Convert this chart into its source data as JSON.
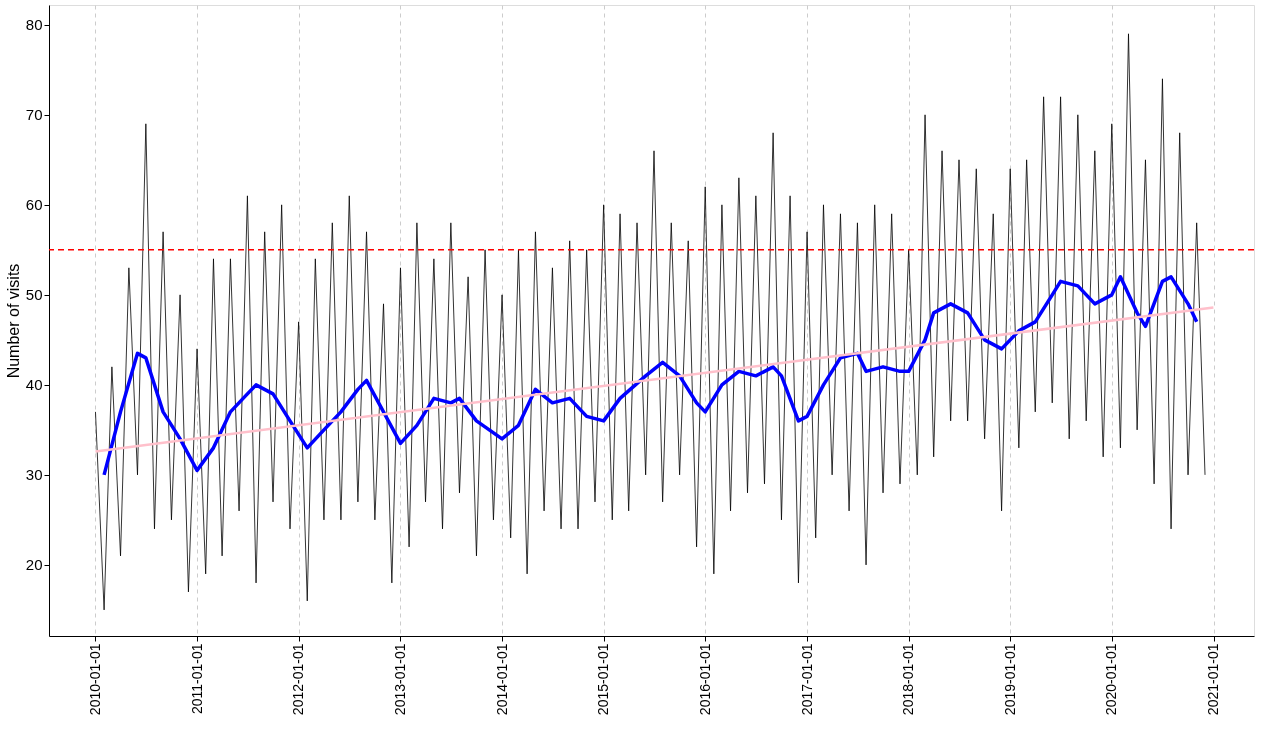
{
  "chart_data": {
    "type": "line",
    "ylabel": "Number of visits",
    "xlim": [
      "2009-07-18",
      "2021-05-26"
    ],
    "ylim": [
      12.1,
      82.2
    ],
    "yticks": [
      20,
      30,
      40,
      50,
      60,
      70,
      80
    ],
    "xticks": [
      "2010-01-01",
      "2011-01-01",
      "2012-01-01",
      "2013-01-01",
      "2014-01-01",
      "2015-01-01",
      "2016-01-01",
      "2017-01-01",
      "2018-01-01",
      "2019-01-01",
      "2020-01-01",
      "2021-01-01"
    ],
    "grid": "x",
    "ref_lines": [
      {
        "axis": "y",
        "value": 55,
        "color": "#ff0000",
        "line_style": "dashed"
      }
    ],
    "series": [
      {
        "color": "#000000",
        "x": [
          "2010-01",
          "2010-02",
          "2010-03",
          "2010-04",
          "2010-05",
          "2010-06",
          "2010-07",
          "2010-08",
          "2010-09",
          "2010-10",
          "2010-11",
          "2010-12",
          "2011-01",
          "2011-02",
          "2011-03",
          "2011-04",
          "2011-05",
          "2011-06",
          "2011-07",
          "2011-08",
          "2011-09",
          "2011-10",
          "2011-11",
          "2011-12",
          "2012-01",
          "2012-02",
          "2012-03",
          "2012-04",
          "2012-05",
          "2012-06",
          "2012-07",
          "2012-08",
          "2012-09",
          "2012-10",
          "2012-11",
          "2012-12",
          "2013-01",
          "2013-02",
          "2013-03",
          "2013-04",
          "2013-05",
          "2013-06",
          "2013-07",
          "2013-08",
          "2013-09",
          "2013-10",
          "2013-11",
          "2013-12",
          "2014-01",
          "2014-02",
          "2014-03",
          "2014-04",
          "2014-05",
          "2014-06",
          "2014-07",
          "2014-08",
          "2014-09",
          "2014-10",
          "2014-11",
          "2014-12",
          "2015-01",
          "2015-02",
          "2015-03",
          "2015-04",
          "2015-05",
          "2015-06",
          "2015-07",
          "2015-08",
          "2015-09",
          "2015-10",
          "2015-11",
          "2015-12",
          "2016-01",
          "2016-02",
          "2016-03",
          "2016-04",
          "2016-05",
          "2016-06",
          "2016-07",
          "2016-08",
          "2016-09",
          "2016-10",
          "2016-11",
          "2016-12",
          "2017-01",
          "2017-02",
          "2017-03",
          "2017-04",
          "2017-05",
          "2017-06",
          "2017-07",
          "2017-08",
          "2017-09",
          "2017-10",
          "2017-11",
          "2017-12",
          "2018-01",
          "2018-02",
          "2018-03",
          "2018-04",
          "2018-05",
          "2018-06",
          "2018-07",
          "2018-08",
          "2018-09",
          "2018-10",
          "2018-11",
          "2018-12",
          "2019-01",
          "2019-02",
          "2019-03",
          "2019-04",
          "2019-05",
          "2019-06",
          "2019-07",
          "2019-08",
          "2019-09",
          "2019-10",
          "2019-11",
          "2019-12",
          "2020-01",
          "2020-02",
          "2020-03",
          "2020-04",
          "2020-05",
          "2020-06",
          "2020-07",
          "2020-08",
          "2020-09",
          "2020-10",
          "2020-11",
          "2020-12"
        ],
        "values": [
          37,
          15,
          42,
          21,
          53,
          30,
          69,
          24,
          57,
          25,
          50,
          17,
          44,
          19,
          54,
          21,
          54,
          26,
          61,
          18,
          57,
          27,
          60,
          24,
          47,
          16,
          54,
          25,
          58,
          25,
          61,
          27,
          57,
          25,
          49,
          18,
          53,
          22,
          58,
          27,
          54,
          24,
          58,
          28,
          52,
          21,
          55,
          25,
          50,
          23,
          55,
          19,
          57,
          26,
          53,
          24,
          56,
          24,
          55,
          27,
          60,
          25,
          59,
          26,
          58,
          30,
          66,
          27,
          58,
          30,
          56,
          22,
          62,
          19,
          60,
          26,
          63,
          28,
          61,
          29,
          68,
          25,
          61,
          18,
          57,
          23,
          60,
          30,
          59,
          26,
          58,
          20,
          60,
          28,
          59,
          29,
          55,
          30,
          70,
          32,
          66,
          36,
          65,
          36,
          64,
          34,
          59,
          26,
          64,
          33,
          65,
          37,
          72,
          38,
          72,
          34,
          70,
          36,
          66,
          32,
          69,
          33,
          79,
          35,
          65,
          29,
          74,
          24,
          68,
          30,
          58,
          30
        ]
      },
      {
        "color": "#0000ff",
        "x": [
          "2010-02-01",
          "2010-04-01",
          "2010-06-01",
          "2010-07-01",
          "2010-09-01",
          "2010-11-01",
          "2011-01-01",
          "2011-03-01",
          "2011-05-01",
          "2011-07-01",
          "2011-08-01",
          "2011-10-01",
          "2011-12-01",
          "2012-02-01",
          "2012-04-01",
          "2012-06-01",
          "2012-08-01",
          "2012-09-01",
          "2012-11-01",
          "2013-01-01",
          "2013-03-01",
          "2013-05-01",
          "2013-07-01",
          "2013-08-01",
          "2013-10-01",
          "2014-01-01",
          "2014-03-01",
          "2014-05-01",
          "2014-07-01",
          "2014-09-01",
          "2014-11-01",
          "2015-01-01",
          "2015-03-01",
          "2015-06-01",
          "2015-08-01",
          "2015-10-01",
          "2015-12-01",
          "2016-01-01",
          "2016-03-01",
          "2016-05-01",
          "2016-07-01",
          "2016-09-01",
          "2016-10-01",
          "2016-12-01",
          "2017-01-01",
          "2017-03-01",
          "2017-05-01",
          "2017-07-01",
          "2017-08-01",
          "2017-10-01",
          "2017-12-01",
          "2018-01-01",
          "2018-03-01",
          "2018-04-01",
          "2018-06-01",
          "2018-08-01",
          "2018-10-01",
          "2018-12-01",
          "2019-02-01",
          "2019-04-01",
          "2019-06-01",
          "2019-07-01",
          "2019-09-01",
          "2019-11-01",
          "2020-01-01",
          "2020-02-01",
          "2020-04-01",
          "2020-05-01",
          "2020-07-01",
          "2020-08-01",
          "2020-10-01",
          "2020-11-01"
        ],
        "values": [
          30,
          37,
          43.5,
          43,
          37,
          34,
          30.5,
          33,
          37,
          39,
          40,
          39,
          36,
          33,
          35,
          37,
          39.5,
          40.5,
          37,
          33.5,
          35.5,
          38.5,
          38,
          38.5,
          36,
          34,
          35.5,
          39.5,
          38,
          38.5,
          36.5,
          36,
          38.5,
          41,
          42.5,
          41,
          38,
          37,
          40,
          41.5,
          41,
          42,
          41,
          36,
          36.5,
          40,
          43,
          43.5,
          41.5,
          42,
          41.5,
          41.5,
          45,
          48,
          49,
          48,
          45,
          44,
          46,
          47,
          50,
          51.5,
          51,
          49,
          50,
          52,
          48,
          46.5,
          51.5,
          52,
          49,
          47
        ]
      },
      {
        "color": "#ffc0cb",
        "x": [
          "2010-01-01",
          "2020-12-31"
        ],
        "values": [
          32.6,
          48.6
        ]
      }
    ]
  }
}
